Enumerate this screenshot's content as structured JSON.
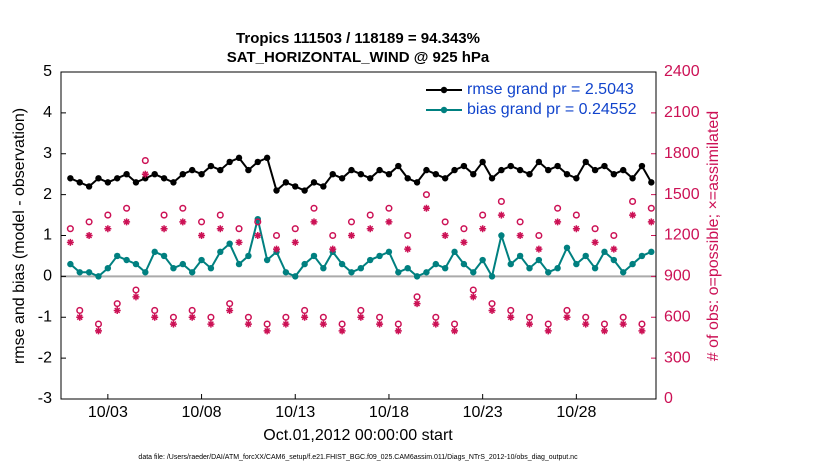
{
  "chart_data": {
    "type": "line",
    "title": "Tropics 111503 / 118189 = 94.343%",
    "subtitle": "SAT_HORIZONTAL_WIND @ 925 hPa",
    "xlabel": "Oct.01,2012 00:00:00 start",
    "ylabel": "rmse and bias (model - observation)",
    "y2label": "# of obs: o=possible; ×=assimilated",
    "footnote": "data file: /Users/raeder/DAI/ATM_forcXX/CAM6_setup/f.e21.FHIST_BGC.f09_025.CAM6assim.011/Diags_NTrS_2012-10/obs_diag_output.nc",
    "xlim": [
      -0.5,
      31.25
    ],
    "xticks": [
      {
        "value": 2,
        "label": "10/03"
      },
      {
        "value": 7,
        "label": "10/08"
      },
      {
        "value": 12,
        "label": "10/13"
      },
      {
        "value": 17,
        "label": "10/18"
      },
      {
        "value": 22,
        "label": "10/23"
      },
      {
        "value": 27,
        "label": "10/28"
      }
    ],
    "ylim": [
      -3,
      5
    ],
    "yticks": [
      -3,
      -2,
      -1,
      0,
      1,
      2,
      3,
      4,
      5
    ],
    "y2lim": [
      0,
      2400
    ],
    "y2ticks": [
      0,
      300,
      600,
      900,
      1200,
      1500,
      1800,
      2100,
      2400
    ],
    "hline": 0,
    "legend": "upper right",
    "x": [
      0,
      0.5,
      1,
      1.5,
      2,
      2.5,
      3,
      3.5,
      4,
      4.5,
      5,
      5.5,
      6,
      6.5,
      7,
      7.5,
      8,
      8.5,
      9,
      9.5,
      10,
      10.5,
      11,
      11.5,
      12,
      12.5,
      13,
      13.5,
      14,
      14.5,
      15,
      15.5,
      16,
      16.5,
      17,
      17.5,
      18,
      18.5,
      19,
      19.5,
      20,
      20.5,
      21,
      21.5,
      22,
      22.5,
      23,
      23.5,
      24,
      24.5,
      25,
      25.5,
      26,
      26.5,
      27,
      27.5,
      28,
      28.5,
      29,
      29.5,
      30,
      30.5,
      31
    ],
    "series": [
      {
        "name": "rmse grand pr = 2.5043",
        "color": "#000000",
        "marker": "dot",
        "values": [
          2.4,
          2.3,
          2.2,
          2.4,
          2.3,
          2.4,
          2.5,
          2.3,
          2.4,
          2.5,
          2.4,
          2.3,
          2.5,
          2.6,
          2.5,
          2.7,
          2.6,
          2.8,
          2.9,
          2.6,
          2.8,
          2.9,
          2.1,
          2.3,
          2.2,
          2.1,
          2.3,
          2.2,
          2.5,
          2.4,
          2.6,
          2.5,
          2.4,
          2.6,
          2.5,
          2.7,
          2.4,
          2.3,
          2.6,
          2.5,
          2.4,
          2.6,
          2.7,
          2.5,
          2.8,
          2.4,
          2.6,
          2.7,
          2.6,
          2.5,
          2.8,
          2.6,
          2.7,
          2.5,
          2.4,
          2.8,
          2.6,
          2.7,
          2.5,
          2.6,
          2.4,
          2.7,
          2.3
        ]
      },
      {
        "name": "bias grand pr = 0.24552",
        "color": "#008080",
        "marker": "dot",
        "values": [
          0.3,
          0.1,
          0.1,
          0.0,
          0.2,
          0.5,
          0.4,
          0.3,
          0.1,
          0.6,
          0.5,
          0.2,
          0.3,
          0.1,
          0.4,
          0.2,
          0.6,
          0.8,
          0.3,
          0.5,
          1.4,
          0.4,
          0.6,
          0.1,
          0.0,
          0.3,
          0.5,
          0.2,
          0.6,
          0.3,
          0.1,
          0.2,
          0.4,
          0.5,
          0.6,
          0.1,
          0.2,
          0.0,
          0.1,
          0.3,
          0.2,
          0.6,
          0.3,
          0.1,
          0.4,
          0.0,
          1.0,
          0.3,
          0.5,
          0.2,
          0.4,
          0.1,
          0.2,
          0.7,
          0.3,
          0.5,
          0.2,
          0.6,
          0.4,
          0.1,
          0.3,
          0.5,
          0.6
        ]
      },
      {
        "color": "#cc1155",
        "marker": "circle",
        "axis": "y2",
        "values": [
          1250,
          650,
          1300,
          550,
          1350,
          700,
          1400,
          800,
          1750,
          650,
          1350,
          600,
          1400,
          650,
          1300,
          600,
          1350,
          700,
          1250,
          600,
          1300,
          550,
          1200,
          600,
          1250,
          650,
          1400,
          600,
          1200,
          550,
          1300,
          650,
          1350,
          600,
          1400,
          550,
          1200,
          750,
          1500,
          600,
          1300,
          550,
          1250,
          800,
          1350,
          700,
          1450,
          650,
          1300,
          600,
          1200,
          550,
          1400,
          650,
          1350,
          600,
          1250,
          550,
          1200,
          600,
          1450,
          550,
          1400
        ]
      },
      {
        "color": "#cc1155",
        "marker": "asterisk",
        "axis": "y2",
        "values": [
          1150,
          600,
          1200,
          500,
          1250,
          650,
          1300,
          750,
          1650,
          600,
          1250,
          550,
          1300,
          600,
          1200,
          550,
          1250,
          650,
          1150,
          550,
          1200,
          500,
          1100,
          550,
          1150,
          600,
          1300,
          550,
          1100,
          500,
          1200,
          600,
          1250,
          550,
          1300,
          500,
          1100,
          700,
          1400,
          550,
          1200,
          500,
          1150,
          750,
          1250,
          650,
          1350,
          600,
          1200,
          550,
          1100,
          500,
          1300,
          600,
          1250,
          550,
          1150,
          500,
          1100,
          550,
          1350,
          500,
          1300
        ]
      }
    ]
  }
}
